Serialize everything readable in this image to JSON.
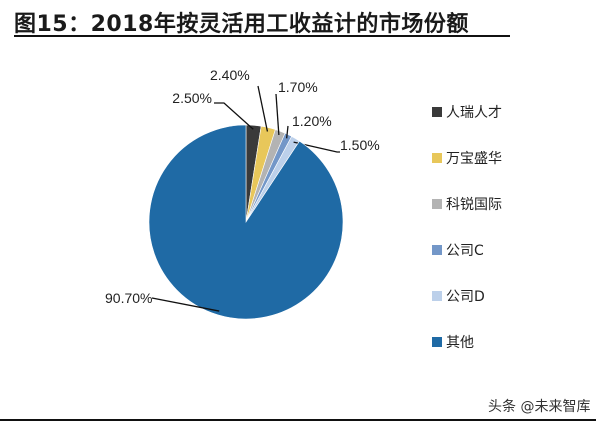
{
  "title": "图15：2018年按灵活用工收益计的市场份额",
  "watermark": "头条 @未来智库",
  "chart_data": {
    "type": "pie",
    "title": "图15：2018年按灵活用工收益计的市场份额",
    "start": "12 o'clock, clockwise",
    "legend_position": "right",
    "slices": [
      {
        "name": "人瑞人才",
        "value": 2.5,
        "label": "2.50%",
        "color": "#3a3a3a"
      },
      {
        "name": "万宝盛华",
        "value": 2.4,
        "label": "2.40%",
        "color": "#e8c75a"
      },
      {
        "name": "科锐国际",
        "value": 1.7,
        "label": "1.70%",
        "color": "#b3b3b3"
      },
      {
        "name": "公司C",
        "value": 1.2,
        "label": "1.20%",
        "color": "#7397c8"
      },
      {
        "name": "公司D",
        "value": 1.5,
        "label": "1.50%",
        "color": "#bcd0ea"
      },
      {
        "name": "其他",
        "value": 90.7,
        "label": "90.70%",
        "color": "#1f6aa5"
      }
    ]
  }
}
